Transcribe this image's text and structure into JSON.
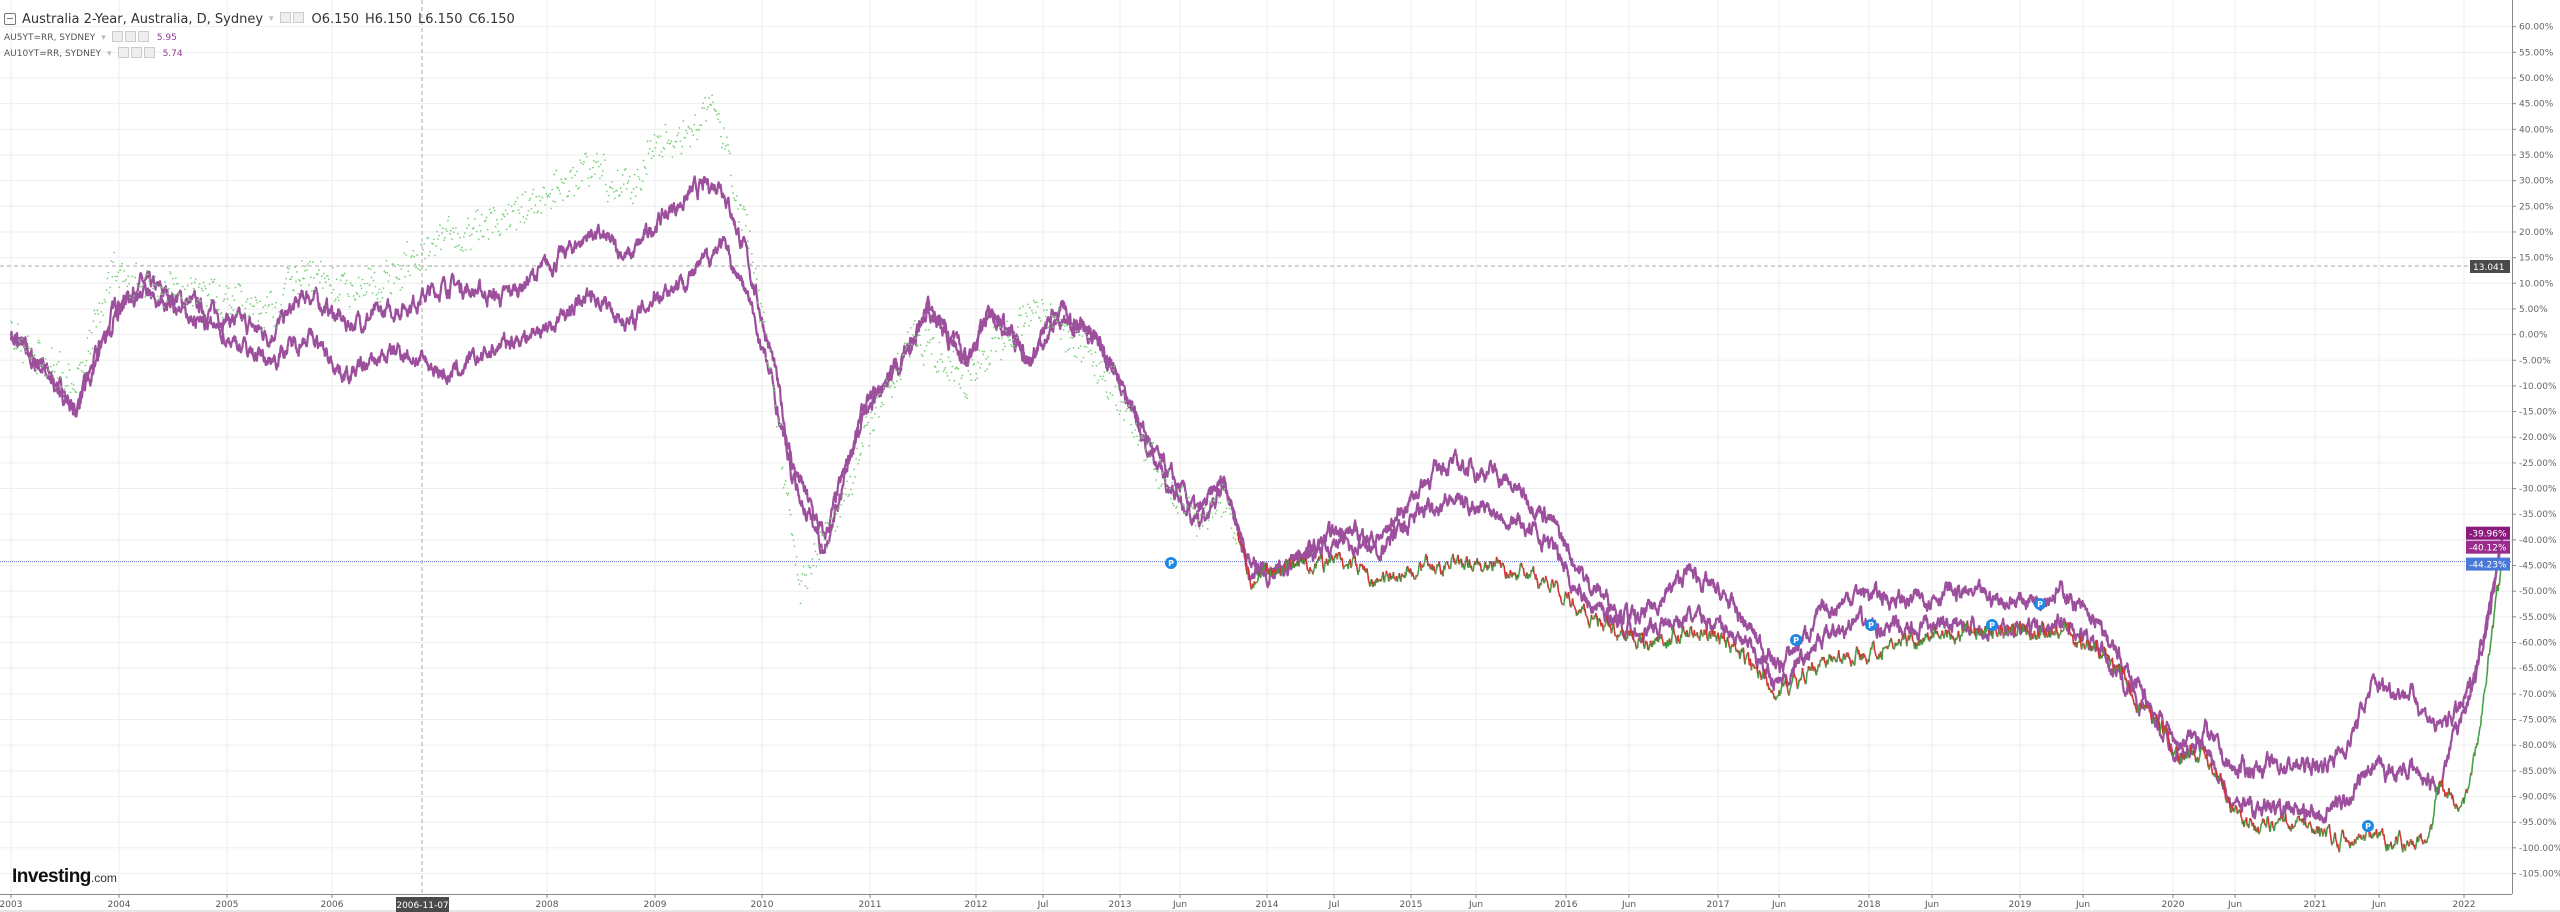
{
  "legend": {
    "main": {
      "title": "Australia 2-Year, Australia, D, Sydney",
      "open": "O6.150",
      "high": "H6.150",
      "low": "L6.150",
      "close": "C6.150"
    },
    "overlays": [
      {
        "title": "AU5YT=RR, SYDNEY",
        "value": "5.95"
      },
      {
        "title": "AU10YT=RR, SYDNEY",
        "value": "5.74"
      }
    ]
  },
  "logo": {
    "brand": "Investing",
    "suffix": ".com"
  },
  "crosshair": {
    "date_label": "2006-11-07",
    "price_label": "13.041"
  },
  "colors": {
    "overlay": "#9c4f9c",
    "overlay_label": "#8b1a7d",
    "up": "#43a047",
    "down": "#d32f2f",
    "main_label": "#4a78d6",
    "marker": "#1e88e5"
  },
  "icons": {
    "collapse": "minus-square-icon",
    "marker": "p-event-marker-icon"
  },
  "chart_data": {
    "type": "line",
    "y_axis": {
      "scale": "percent",
      "range": [
        -107,
        63
      ],
      "ticks": [
        "60.00%",
        "55.00%",
        "50.00%",
        "45.00%",
        "40.00%",
        "35.00%",
        "30.00%",
        "25.00%",
        "20.00%",
        "15.00%",
        "10.00%",
        "5.00%",
        "0.00%",
        "-5.00%",
        "-10.00%",
        "-15.00%",
        "-20.00%",
        "-25.00%",
        "-30.00%",
        "-35.00%",
        "-40.00%",
        "-45.00%",
        "-50.00%",
        "-55.00%",
        "-60.00%",
        "-65.00%",
        "-70.00%",
        "-75.00%",
        "-80.00%",
        "-85.00%",
        "-90.00%",
        "-95.00%",
        "-100.00%",
        "-105.00%"
      ]
    },
    "x_axis": {
      "labels": [
        "2003",
        "2004",
        "2005",
        "2006",
        "2008",
        "2009",
        "2010",
        "2011",
        "2012",
        "Jul",
        "2013",
        "Jun",
        "2014",
        "Jul",
        "2015",
        "Jun",
        "2016",
        "Jun",
        "2017",
        "Jun",
        "2018",
        "Jun",
        "2019",
        "Jun",
        "2020",
        "Jun",
        "2021",
        "Jun",
        "2022"
      ]
    },
    "grid": true,
    "last_labels": [
      "-39.96%",
      "-40.12%",
      "-44.23%"
    ],
    "series": [
      {
        "name": "AU5YT=RR, SYDNEY",
        "points": [
          [
            2003.0,
            0
          ],
          [
            2003.3,
            -8
          ],
          [
            2003.5,
            -15
          ],
          [
            2003.8,
            5
          ],
          [
            2004.0,
            10
          ],
          [
            2004.5,
            5
          ],
          [
            2005.0,
            0
          ],
          [
            2005.3,
            8
          ],
          [
            2005.6,
            2
          ],
          [
            2006.0,
            5
          ],
          [
            2006.4,
            10
          ],
          [
            2006.8,
            7
          ],
          [
            2007.2,
            14
          ],
          [
            2007.5,
            20
          ],
          [
            2007.8,
            15
          ],
          [
            2008.0,
            22
          ],
          [
            2008.3,
            28
          ],
          [
            2008.5,
            30
          ],
          [
            2008.7,
            15
          ],
          [
            2008.9,
            -5
          ],
          [
            2009.05,
            -25
          ],
          [
            2009.3,
            -40
          ],
          [
            2009.6,
            -15
          ],
          [
            2009.9,
            -5
          ],
          [
            2010.1,
            5
          ],
          [
            2010.4,
            -5
          ],
          [
            2010.6,
            5
          ],
          [
            2010.9,
            -5
          ],
          [
            2011.1,
            5
          ],
          [
            2011.4,
            0
          ],
          [
            2011.6,
            -10
          ],
          [
            2011.9,
            -25
          ],
          [
            2012.2,
            -35
          ],
          [
            2012.4,
            -28
          ],
          [
            2012.6,
            -45
          ],
          [
            2012.9,
            -45
          ],
          [
            2013.3,
            -38
          ],
          [
            2013.6,
            -40
          ],
          [
            2013.9,
            -30
          ],
          [
            2014.1,
            -25
          ],
          [
            2014.5,
            -27
          ],
          [
            2014.9,
            -35
          ],
          [
            2015.2,
            -48
          ],
          [
            2015.6,
            -56
          ],
          [
            2016.0,
            -46
          ],
          [
            2016.3,
            -52
          ],
          [
            2016.7,
            -65
          ],
          [
            2017.0,
            -55
          ],
          [
            2017.3,
            -50
          ],
          [
            2017.7,
            -52
          ],
          [
            2018.0,
            -50
          ],
          [
            2018.5,
            -52
          ],
          [
            2018.9,
            -50
          ],
          [
            2019.2,
            -58
          ],
          [
            2019.5,
            -70
          ],
          [
            2019.8,
            -80
          ],
          [
            2020.0,
            -77
          ],
          [
            2020.2,
            -85
          ],
          [
            2020.5,
            -84
          ],
          [
            2020.9,
            -84
          ],
          [
            2021.1,
            -80
          ],
          [
            2021.3,
            -68
          ],
          [
            2021.6,
            -70
          ],
          [
            2021.8,
            -77
          ],
          [
            2022.0,
            -72
          ],
          [
            2022.1,
            -65
          ],
          [
            2022.3,
            -40
          ]
        ]
      },
      {
        "name": "AU10YT=RR, SYDNEY",
        "points": [
          [
            2003.0,
            0
          ],
          [
            2003.3,
            -8
          ],
          [
            2003.5,
            -15
          ],
          [
            2003.8,
            3
          ],
          [
            2004.0,
            8
          ],
          [
            2004.5,
            2
          ],
          [
            2005.0,
            -5
          ],
          [
            2005.3,
            0
          ],
          [
            2005.6,
            -8
          ],
          [
            2006.0,
            -3
          ],
          [
            2006.4,
            -8
          ],
          [
            2006.8,
            -2
          ],
          [
            2007.2,
            2
          ],
          [
            2007.5,
            8
          ],
          [
            2007.8,
            2
          ],
          [
            2008.0,
            8
          ],
          [
            2008.3,
            12
          ],
          [
            2008.5,
            18
          ],
          [
            2008.7,
            8
          ],
          [
            2008.9,
            -10
          ],
          [
            2009.05,
            -28
          ],
          [
            2009.3,
            -42
          ],
          [
            2009.6,
            -15
          ],
          [
            2009.9,
            -5
          ],
          [
            2010.1,
            5
          ],
          [
            2010.4,
            -5
          ],
          [
            2010.6,
            5
          ],
          [
            2010.9,
            -5
          ],
          [
            2011.1,
            3
          ],
          [
            2011.4,
            0
          ],
          [
            2011.6,
            -10
          ],
          [
            2011.9,
            -27
          ],
          [
            2012.2,
            -37
          ],
          [
            2012.4,
            -30
          ],
          [
            2012.6,
            -48
          ],
          [
            2012.9,
            -45
          ],
          [
            2013.3,
            -40
          ],
          [
            2013.6,
            -42
          ],
          [
            2013.9,
            -35
          ],
          [
            2014.1,
            -32
          ],
          [
            2014.5,
            -34
          ],
          [
            2014.9,
            -40
          ],
          [
            2015.2,
            -52
          ],
          [
            2015.6,
            -58
          ],
          [
            2016.0,
            -55
          ],
          [
            2016.3,
            -57
          ],
          [
            2016.7,
            -68
          ],
          [
            2017.0,
            -60
          ],
          [
            2017.3,
            -56
          ],
          [
            2017.7,
            -58
          ],
          [
            2018.0,
            -56
          ],
          [
            2018.5,
            -58
          ],
          [
            2018.9,
            -56
          ],
          [
            2019.2,
            -62
          ],
          [
            2019.5,
            -72
          ],
          [
            2019.8,
            -82
          ],
          [
            2020.0,
            -80
          ],
          [
            2020.2,
            -92
          ],
          [
            2020.5,
            -92
          ],
          [
            2020.9,
            -94
          ],
          [
            2021.1,
            -90
          ],
          [
            2021.3,
            -85
          ],
          [
            2021.6,
            -85
          ],
          [
            2021.8,
            -88
          ],
          [
            2022.0,
            -73
          ],
          [
            2022.1,
            -65
          ],
          [
            2022.3,
            -40
          ]
        ]
      },
      {
        "name": "Australia 2-Year",
        "points": [
          [
            2003.0,
            0
          ],
          [
            2003.3,
            -5
          ],
          [
            2003.5,
            -10
          ],
          [
            2003.8,
            12
          ],
          [
            2004.0,
            10
          ],
          [
            2004.5,
            8
          ],
          [
            2005.0,
            5
          ],
          [
            2005.3,
            12
          ],
          [
            2005.6,
            8
          ],
          [
            2006.0,
            12
          ],
          [
            2006.4,
            20
          ],
          [
            2006.8,
            22
          ],
          [
            2007.2,
            28
          ],
          [
            2007.5,
            33
          ],
          [
            2007.8,
            28
          ],
          [
            2008.0,
            38
          ],
          [
            2008.3,
            40
          ],
          [
            2008.45,
            45
          ],
          [
            2008.7,
            20
          ],
          [
            2008.9,
            -10
          ],
          [
            2009.1,
            -50
          ],
          [
            2009.4,
            -35
          ],
          [
            2009.7,
            -15
          ],
          [
            2010.0,
            0
          ],
          [
            2010.4,
            -10
          ],
          [
            2010.7,
            0
          ],
          [
            2011.0,
            5
          ],
          [
            2011.4,
            -5
          ],
          [
            2011.6,
            -12
          ],
          [
            2011.9,
            -27
          ],
          [
            2012.2,
            -37
          ],
          [
            2012.4,
            -30
          ],
          [
            2012.6,
            -48
          ],
          [
            2012.9,
            -45
          ],
          [
            2013.3,
            -44
          ],
          [
            2013.6,
            -48
          ],
          [
            2014.0,
            -45
          ],
          [
            2014.5,
            -45
          ],
          [
            2014.9,
            -48
          ],
          [
            2015.2,
            -55
          ],
          [
            2015.6,
            -60
          ],
          [
            2016.0,
            -58
          ],
          [
            2016.3,
            -60
          ],
          [
            2016.7,
            -70
          ],
          [
            2017.0,
            -64
          ],
          [
            2017.3,
            -62
          ],
          [
            2017.7,
            -60
          ],
          [
            2018.0,
            -58
          ],
          [
            2018.5,
            -58
          ],
          [
            2018.9,
            -58
          ],
          [
            2019.2,
            -62
          ],
          [
            2019.5,
            -72
          ],
          [
            2019.8,
            -82
          ],
          [
            2020.0,
            -82
          ],
          [
            2020.3,
            -96
          ],
          [
            2020.6,
            -95
          ],
          [
            2021.0,
            -98
          ],
          [
            2021.3,
            -98
          ],
          [
            2021.6,
            -99
          ],
          [
            2021.75,
            -96
          ],
          [
            2021.8,
            -88
          ],
          [
            2022.0,
            -93
          ],
          [
            2022.1,
            -80
          ],
          [
            2022.3,
            -44.23
          ]
        ]
      }
    ]
  }
}
